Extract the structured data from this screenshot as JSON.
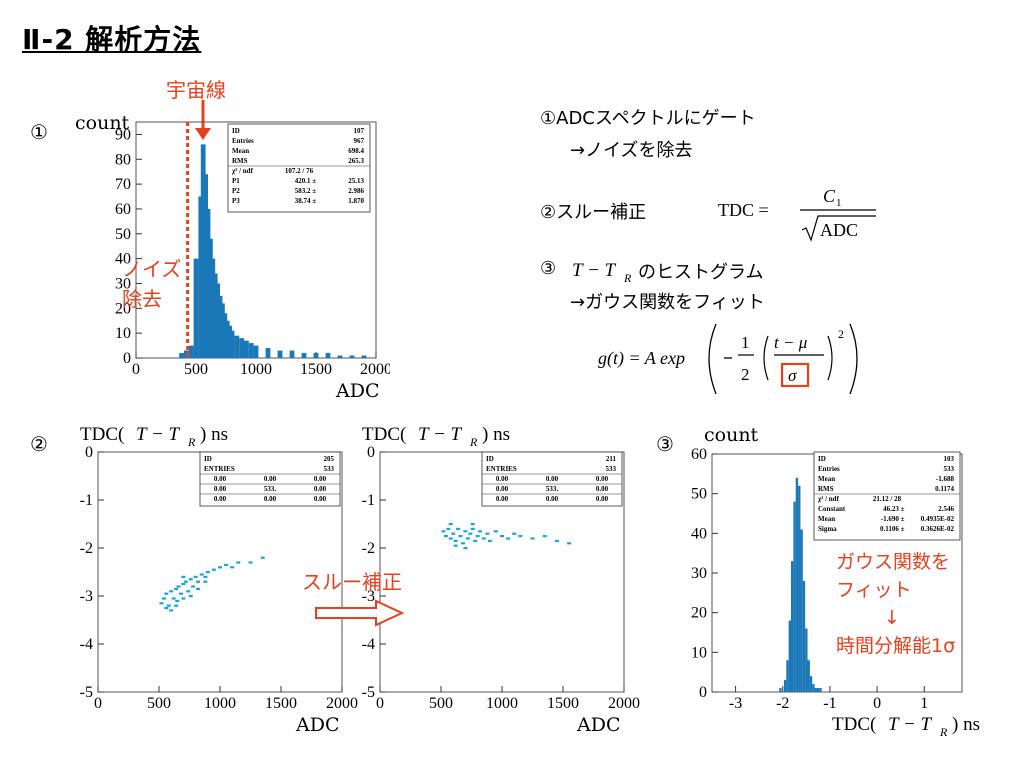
{
  "title": "Ⅱ-2  解析方法",
  "labels": {
    "cosmic": "宇宙線",
    "noise_line1": "ノイズ",
    "noise_line2": "除去",
    "slew_arrow": "スルー補正",
    "gauss_line1": "ガウス関数を",
    "gauss_line2": "フィット",
    "down_arrow": "↓",
    "resolution": "時間分解能1σ"
  },
  "markers": {
    "m1": "①",
    "m2": "②",
    "m3": "③"
  },
  "steps": {
    "s1": "①ADCスペクトルにゲート",
    "s1b": "→ノイズを除去",
    "s2": "②スルー補正",
    "s3_prefix": "③",
    "s3_suffix": "のヒストグラム",
    "s3b": "→ガウス関数をフィット"
  },
  "formulas": {
    "tdc_lhs": "TDC =",
    "tdc_num": "C",
    "tdc_num_sub": "1",
    "tdc_den": "ADC",
    "t_tr": "T − T",
    "t_tr_sub": "R",
    "gauss": "g(t) = A exp",
    "gauss_num1": "1",
    "gauss_den1": "2",
    "gauss_num2": "t − μ",
    "gauss_den2": "σ",
    "gauss_pow": "2"
  },
  "chart_data": [
    {
      "type": "bar",
      "name": "adc-histogram",
      "ylabel": "count",
      "xlabel": "ADC",
      "xlim": [
        0,
        2000
      ],
      "ylim": [
        0,
        95
      ],
      "xticks": [
        "0",
        "500",
        "1000",
        "1500",
        "2000"
      ],
      "yticks": [
        "0",
        "10",
        "20",
        "30",
        "40",
        "50",
        "60",
        "70",
        "80",
        "90"
      ],
      "gate": 430,
      "x": [
        380,
        420,
        460,
        500,
        540,
        560,
        580,
        600,
        620,
        640,
        660,
        680,
        700,
        720,
        740,
        760,
        780,
        800,
        840,
        880,
        920,
        960,
        1000,
        1100,
        1200,
        1300,
        1400,
        1500,
        1600,
        1700,
        1800,
        1900
      ],
      "values": [
        2,
        3,
        5,
        40,
        65,
        86,
        74,
        60,
        48,
        40,
        34,
        30,
        25,
        22,
        18,
        15,
        13,
        11,
        9,
        8,
        7,
        6,
        5,
        4,
        3,
        3,
        2,
        2,
        2,
        1,
        1,
        1
      ],
      "stats": [
        [
          "ID",
          "107"
        ],
        [
          "Entries",
          "967"
        ],
        [
          "Mean",
          "698.4"
        ],
        [
          "RMS",
          "265.3"
        ]
      ],
      "fit": {
        "chi2": "107.2  /  76",
        "rows": [
          [
            "P1",
            "420.1 ±",
            "25.13"
          ],
          [
            "P2",
            "583.2 ±",
            "2.986"
          ],
          [
            "P3",
            "38.74 ±",
            "1.870"
          ]
        ]
      }
    },
    {
      "type": "scatter",
      "name": "tdc-vs-adc-before",
      "ylabel": "TDC(T − T_R) ns",
      "xlabel": "ADC",
      "xlim": [
        0,
        2000
      ],
      "ylim": [
        -5,
        0
      ],
      "xticks": [
        "0",
        "500",
        "1000",
        "1500",
        "2000"
      ],
      "yticks": [
        "0",
        "-1",
        "-2",
        "-3",
        "-4",
        "-5"
      ],
      "stats_header": [
        [
          "ID",
          "205"
        ],
        [
          "ENTRIES",
          "533"
        ]
      ],
      "stats_grid": [
        [
          "0.00",
          "0.00",
          "0.00"
        ],
        [
          "0.00",
          "533.",
          "0.00"
        ],
        [
          "0.00",
          "0.00",
          "0.00"
        ]
      ],
      "points": [
        [
          520,
          -3.15
        ],
        [
          540,
          -3.05
        ],
        [
          560,
          -2.95
        ],
        [
          580,
          -3.2
        ],
        [
          600,
          -2.9
        ],
        [
          620,
          -3.05
        ],
        [
          640,
          -2.85
        ],
        [
          650,
          -3.1
        ],
        [
          660,
          -2.8
        ],
        [
          680,
          -2.95
        ],
        [
          700,
          -2.75
        ],
        [
          700,
          -3.05
        ],
        [
          720,
          -2.7
        ],
        [
          740,
          -2.9
        ],
        [
          760,
          -2.65
        ],
        [
          780,
          -2.8
        ],
        [
          800,
          -2.6
        ],
        [
          820,
          -2.7
        ],
        [
          850,
          -2.55
        ],
        [
          880,
          -2.6
        ],
        [
          900,
          -2.5
        ],
        [
          950,
          -2.45
        ],
        [
          1000,
          -2.4
        ],
        [
          1050,
          -2.35
        ],
        [
          1100,
          -2.4
        ],
        [
          1150,
          -2.3
        ],
        [
          1250,
          -2.3
        ],
        [
          1350,
          -2.2
        ],
        [
          600,
          -3.3
        ],
        [
          560,
          -3.25
        ],
        [
          640,
          -3.2
        ],
        [
          760,
          -3.0
        ],
        [
          820,
          -2.85
        ],
        [
          700,
          -2.6
        ],
        [
          880,
          -2.7
        ]
      ]
    },
    {
      "type": "scatter",
      "name": "tdc-vs-adc-after",
      "ylabel": "TDC(T − T_R) ns",
      "xlabel": "ADC",
      "xlim": [
        0,
        2000
      ],
      "ylim": [
        -5,
        0
      ],
      "xticks": [
        "0",
        "500",
        "1000",
        "1500",
        "2000"
      ],
      "yticks": [
        "0",
        "-1",
        "-2",
        "-3",
        "-4",
        "-5"
      ],
      "stats_header": [
        [
          "ID",
          "211"
        ],
        [
          "ENTRIES",
          "533"
        ]
      ],
      "stats_grid": [
        [
          "0.00",
          "0.00",
          "0.00"
        ],
        [
          "0.00",
          "533.",
          "0.00"
        ],
        [
          "0.00",
          "0.00",
          "0.00"
        ]
      ],
      "points": [
        [
          520,
          -1.65
        ],
        [
          540,
          -1.75
        ],
        [
          560,
          -1.6
        ],
        [
          580,
          -1.8
        ],
        [
          600,
          -1.7
        ],
        [
          620,
          -1.85
        ],
        [
          640,
          -1.6
        ],
        [
          660,
          -1.75
        ],
        [
          680,
          -1.9
        ],
        [
          700,
          -1.65
        ],
        [
          720,
          -1.8
        ],
        [
          740,
          -1.7
        ],
        [
          760,
          -1.6
        ],
        [
          780,
          -1.85
        ],
        [
          800,
          -1.75
        ],
        [
          820,
          -1.65
        ],
        [
          850,
          -1.8
        ],
        [
          880,
          -1.7
        ],
        [
          900,
          -1.85
        ],
        [
          950,
          -1.65
        ],
        [
          1000,
          -1.75
        ],
        [
          1050,
          -1.8
        ],
        [
          1100,
          -1.7
        ],
        [
          1150,
          -1.75
        ],
        [
          1250,
          -1.8
        ],
        [
          1350,
          -1.75
        ],
        [
          1450,
          -1.85
        ],
        [
          1550,
          -1.9
        ],
        [
          580,
          -1.5
        ],
        [
          620,
          -1.95
        ],
        [
          700,
          -2.0
        ],
        [
          760,
          -1.5
        ]
      ]
    },
    {
      "type": "bar",
      "name": "time-difference-histogram",
      "ylabel": "count",
      "xlabel": "TDC(T − T_R) ns",
      "xlim": [
        -3.5,
        1.8
      ],
      "ylim": [
        0,
        60
      ],
      "xticks": [
        "-3",
        "-2",
        "-1",
        "0",
        "1"
      ],
      "yticks": [
        "0",
        "10",
        "20",
        "30",
        "40",
        "50",
        "60"
      ],
      "x": [
        -2.05,
        -1.95,
        -1.9,
        -1.85,
        -1.8,
        -1.75,
        -1.7,
        -1.65,
        -1.6,
        -1.55,
        -1.5,
        -1.45,
        -1.4,
        -1.35,
        -1.3,
        -1.25,
        -1.2
      ],
      "values": [
        1,
        3,
        8,
        18,
        33,
        48,
        54,
        52,
        41,
        28,
        16,
        8,
        4,
        2,
        1,
        1,
        1
      ],
      "stats": [
        [
          "ID",
          "103"
        ],
        [
          "Entries",
          "533"
        ],
        [
          "Mean",
          "-1.688"
        ],
        [
          "RMS",
          "0.1174"
        ]
      ],
      "fit": {
        "chi2": "21.12  /  28",
        "rows": [
          [
            "Constant",
            "46.23 ±",
            "2.546"
          ],
          [
            "Mean",
            "-1.690 ±",
            "0.4935E-02"
          ],
          [
            "Sigma",
            "0.1106 ±",
            "0.3626E-02"
          ]
        ]
      }
    }
  ],
  "colors": {
    "bar": "#1a78b8",
    "point": "#1aa6d4",
    "accent": "#e8401c"
  }
}
